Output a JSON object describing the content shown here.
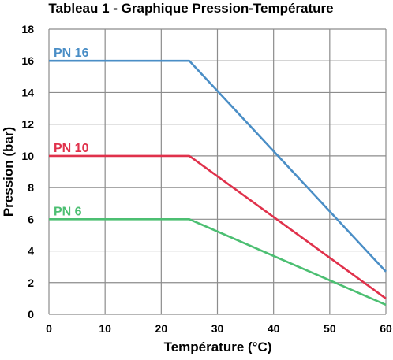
{
  "chart_data": {
    "type": "line",
    "title": "Tableau 1 - Graphique Pression-Température",
    "xlabel": "Température (°C)",
    "ylabel": "Pression (bar)",
    "xlim": [
      0,
      60
    ],
    "ylim": [
      0,
      18
    ],
    "xticks": [
      0,
      10,
      20,
      30,
      40,
      50,
      60
    ],
    "yticks": [
      0,
      2,
      4,
      6,
      8,
      10,
      12,
      14,
      16,
      18
    ],
    "grid": true,
    "series": [
      {
        "name": "PN 16",
        "color": "#4a8ec6",
        "x": [
          0,
          25,
          60
        ],
        "y": [
          16,
          16,
          2.7
        ]
      },
      {
        "name": "PN 10",
        "color": "#e0314b",
        "x": [
          0,
          25,
          60
        ],
        "y": [
          10,
          10,
          1.0
        ]
      },
      {
        "name": "PN 6",
        "color": "#4cbf72",
        "x": [
          0,
          25,
          60
        ],
        "y": [
          6,
          6,
          0.6
        ]
      }
    ]
  }
}
